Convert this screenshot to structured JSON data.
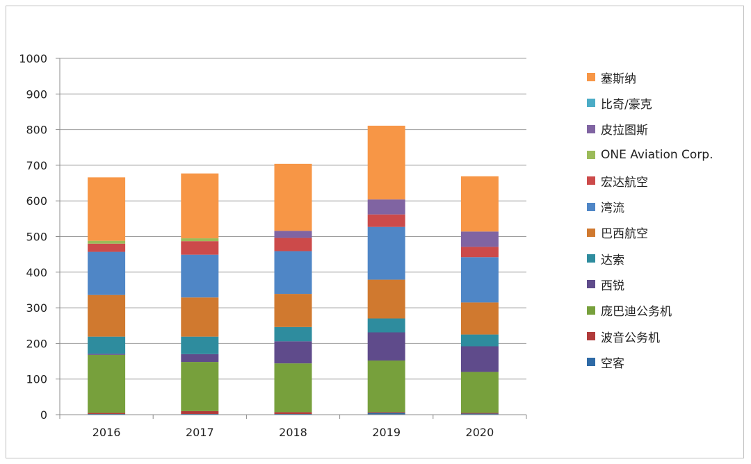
{
  "chart_data": {
    "type": "bar",
    "stacked": true,
    "categories": [
      "2016",
      "2017",
      "2018",
      "2019",
      "2020"
    ],
    "ylim": [
      0,
      1000
    ],
    "yticks": [
      "0",
      "100",
      "200",
      "300",
      "400",
      "500",
      "600",
      "700",
      "800",
      "900",
      "1000"
    ],
    "grid": true,
    "legend_position": "right",
    "title": "",
    "xlabel": "",
    "ylabel": "",
    "series": [
      {
        "name": "空客",
        "color": "#2e6aa6",
        "values": [
          2,
          2,
          2,
          5,
          3
        ]
      },
      {
        "name": "波音公务机",
        "color": "#b03a3a",
        "values": [
          3,
          8,
          5,
          2,
          2
        ]
      },
      {
        "name": "庞巴迪公务机",
        "color": "#77a03c",
        "values": [
          163,
          138,
          137,
          145,
          115
        ]
      },
      {
        "name": "西锐",
        "color": "#5f4b8b",
        "values": [
          3,
          22,
          62,
          79,
          72
        ]
      },
      {
        "name": "达索",
        "color": "#2e8c9e",
        "values": [
          48,
          49,
          40,
          39,
          33
        ]
      },
      {
        "name": "巴西航空",
        "color": "#d0792f",
        "values": [
          117,
          110,
          93,
          109,
          90
        ]
      },
      {
        "name": "湾流",
        "color": "#4f86c6",
        "values": [
          121,
          120,
          120,
          148,
          127
        ]
      },
      {
        "name": "宏达航空",
        "color": "#cc4a4a",
        "values": [
          23,
          38,
          37,
          35,
          29
        ]
      },
      {
        "name": "ONE Aviation Corp.",
        "color": "#9bbb59",
        "values": [
          8,
          8,
          0,
          0,
          0
        ]
      },
      {
        "name": "皮拉图斯",
        "color": "#8064a2",
        "values": [
          0,
          0,
          20,
          42,
          43
        ]
      },
      {
        "name": "比奇/豪克",
        "color": "#4bacc6",
        "values": [
          0,
          0,
          0,
          0,
          0
        ]
      },
      {
        "name": "塞斯纳",
        "color": "#f79646",
        "values": [
          178,
          182,
          188,
          207,
          155
        ]
      }
    ]
  }
}
